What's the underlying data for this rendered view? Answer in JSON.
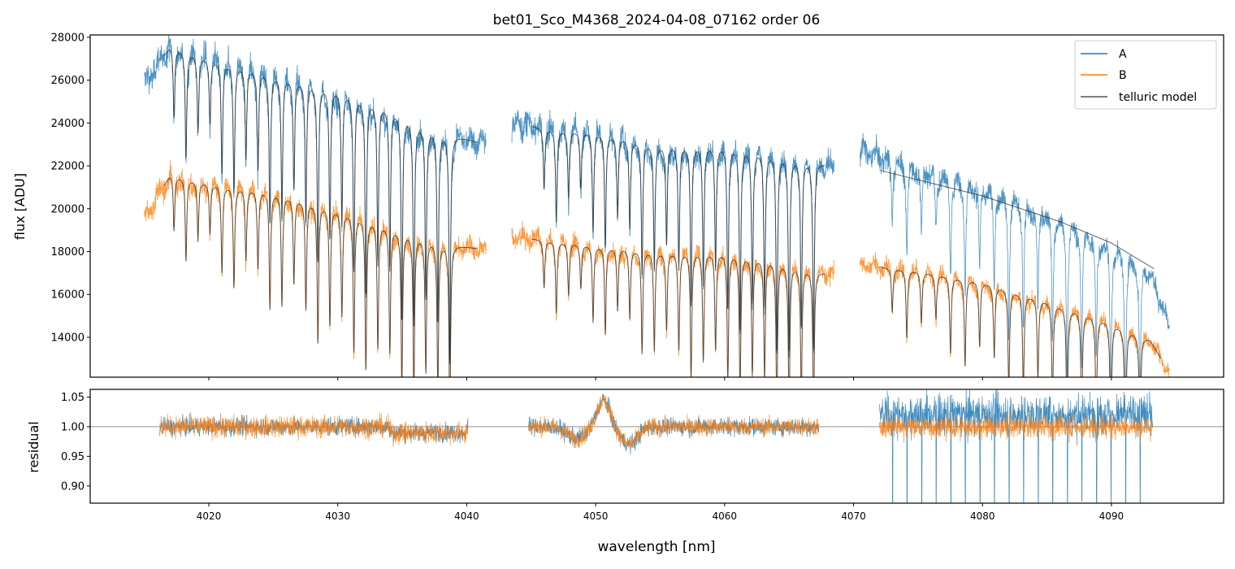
{
  "chart_data": {
    "type": "line",
    "title": "bet01_Sco_M4368_2024-04-08_07162  order 06",
    "xlabel": "wavelength [nm]",
    "xlim": [
      4010.8,
      4098.7
    ],
    "xticks": [
      4020,
      4030,
      4040,
      4050,
      4060,
      4070,
      4080,
      4090
    ],
    "legend": {
      "placement": "top-right",
      "entries": [
        {
          "label": "A",
          "color": "#1f77b4"
        },
        {
          "label": "B",
          "color": "#ff7f0e"
        },
        {
          "label": "telluric model",
          "color": "#555555"
        }
      ]
    },
    "top_panel": {
      "ylabel": "flux [ADU]",
      "ylim": [
        12140,
        28110
      ],
      "yticks": [
        14000,
        16000,
        18000,
        20000,
        22000,
        24000,
        26000,
        28000
      ],
      "segments": [
        {
          "range": [
            4015.0,
            4041.5
          ],
          "lines": {
            "start": 4017.3,
            "step": 0.93,
            "count": 24
          },
          "A_continuum": [
            [
              4015,
              25800
            ],
            [
              4017,
              27600
            ],
            [
              4020,
              27000
            ],
            [
              4025,
              26300
            ],
            [
              4030,
              25600
            ],
            [
              4034,
              24800
            ],
            [
              4037,
              23800
            ],
            [
              4041.5,
              23000
            ]
          ],
          "B_continuum": [
            [
              4015,
              19500
            ],
            [
              4017,
              21600
            ],
            [
              4020,
              21200
            ],
            [
              4025,
              20800
            ],
            [
              4030,
              20000
            ],
            [
              4034,
              19200
            ],
            [
              4038,
              18400
            ],
            [
              4041.5,
              18100
            ]
          ]
        },
        {
          "range": [
            4043.5,
            4068.5
          ],
          "lines": {
            "start": 4046.0,
            "step": 0.95,
            "count": 23
          },
          "A_continuum": [
            [
              4043.5,
              24000
            ],
            [
              4047,
              23700
            ],
            [
              4050,
              23600
            ],
            [
              4055,
              23000
            ],
            [
              4060,
              23000
            ],
            [
              4064,
              22600
            ],
            [
              4068.5,
              22000
            ]
          ],
          "B_continuum": [
            [
              4043.5,
              18700
            ],
            [
              4047,
              18500
            ],
            [
              4050,
              18300
            ],
            [
              4055,
              18000
            ],
            [
              4060,
              18000
            ],
            [
              4064,
              17600
            ],
            [
              4068.5,
              16900
            ]
          ]
        },
        {
          "range": [
            4070.5,
            4094.5
          ],
          "lines": {
            "start": 4073.0,
            "step": 1.13,
            "count": 18
          },
          "A_continuum": [
            [
              4070.5,
              22700
            ],
            [
              4075,
              21900
            ],
            [
              4080,
              21000
            ],
            [
              4085,
              19800
            ],
            [
              4090,
              18300
            ],
            [
              4093,
              17000
            ],
            [
              4094.5,
              14500
            ]
          ],
          "B_continuum": [
            [
              4070.5,
              17400
            ],
            [
              4075,
              17100
            ],
            [
              4080,
              16600
            ],
            [
              4085,
              15700
            ],
            [
              4090,
              14700
            ],
            [
              4093,
              13900
            ],
            [
              4094.5,
              12300
            ]
          ],
          "A_model": [
            [
              4072,
              21800
            ],
            [
              4080,
              20600
            ],
            [
              4086,
              19400
            ],
            [
              4090,
              18400
            ],
            [
              4093.3,
              17200
            ]
          ]
        }
      ]
    },
    "bottom_panel": {
      "ylabel": "residual",
      "ylim": [
        0.871,
        1.063
      ],
      "yticks": [
        0.9,
        0.95,
        1.0,
        1.05
      ],
      "reference": 1.0,
      "segments": [
        [
          4016.2,
          4040.1
        ],
        [
          4044.8,
          4067.3
        ],
        [
          4072.0,
          4093.2
        ]
      ],
      "features": [
        {
          "at": 4050.5,
          "value": 1.05
        },
        {
          "at": 4052.5,
          "value": 0.97
        }
      ]
    }
  }
}
